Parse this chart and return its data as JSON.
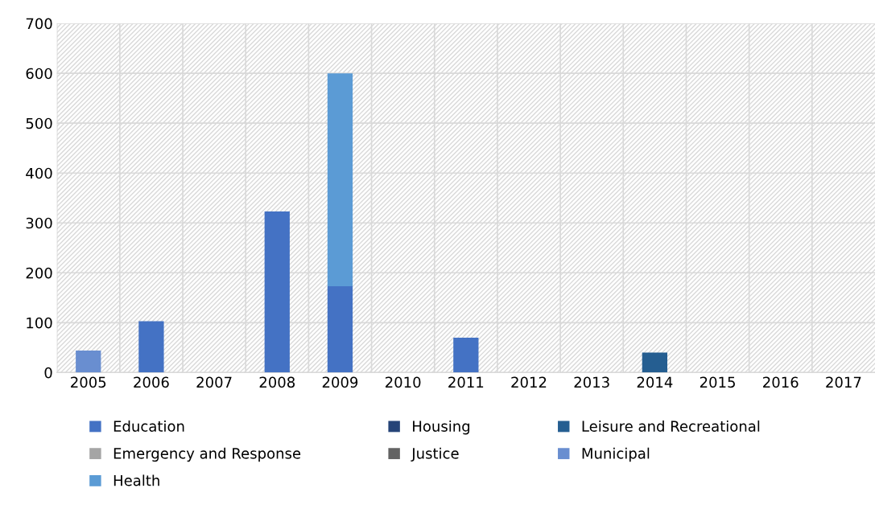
{
  "chart_data": {
    "type": "bar",
    "stacked": true,
    "categories": [
      "2005",
      "2006",
      "2007",
      "2008",
      "2009",
      "2010",
      "2011",
      "2012",
      "2013",
      "2014",
      "2015",
      "2016",
      "2017"
    ],
    "series": [
      {
        "name": "Education",
        "color": "#4472c4",
        "values": [
          null,
          103,
          null,
          323,
          173,
          null,
          70,
          null,
          null,
          null,
          null,
          null,
          null
        ]
      },
      {
        "name": "Emergency and Response",
        "color": "#a5a5a5",
        "values": [
          null,
          null,
          null,
          null,
          null,
          null,
          null,
          null,
          null,
          null,
          null,
          null,
          null
        ]
      },
      {
        "name": "Health",
        "color": "#5b9bd5",
        "values": [
          null,
          null,
          null,
          null,
          427,
          null,
          null,
          null,
          null,
          null,
          null,
          null,
          null
        ]
      },
      {
        "name": "Housing",
        "color": "#264478",
        "values": [
          null,
          null,
          null,
          null,
          null,
          null,
          null,
          null,
          null,
          null,
          null,
          null,
          null
        ]
      },
      {
        "name": "Justice",
        "color": "#636363",
        "values": [
          null,
          null,
          null,
          null,
          null,
          null,
          null,
          null,
          null,
          null,
          null,
          null,
          null
        ]
      },
      {
        "name": "Leisure and Recreational",
        "color": "#255e91",
        "values": [
          null,
          null,
          null,
          null,
          null,
          null,
          null,
          null,
          null,
          40,
          null,
          null,
          null
        ]
      },
      {
        "name": "Municipal",
        "color": "#698ed0",
        "values": [
          44,
          null,
          null,
          null,
          null,
          null,
          null,
          null,
          null,
          null,
          null,
          null,
          null
        ]
      }
    ],
    "ylim": [
      0,
      700
    ],
    "yticks": [
      0,
      100,
      200,
      300,
      400,
      500,
      600,
      700
    ],
    "grid": true,
    "legend": "bottom"
  }
}
